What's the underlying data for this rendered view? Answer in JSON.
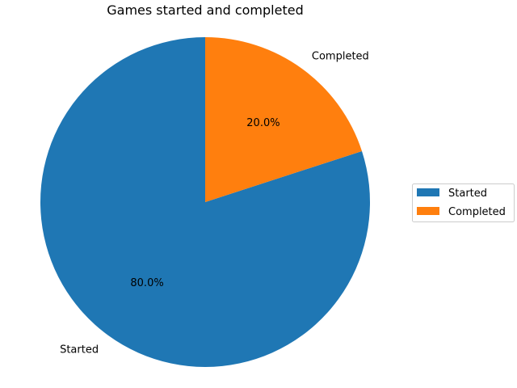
{
  "chart_data": {
    "type": "pie",
    "title": "Games started and completed",
    "slices": [
      {
        "label": "Started",
        "value": 80.0,
        "pct_label": "80.0%",
        "color": "#1f77b4"
      },
      {
        "label": "Completed",
        "value": 20.0,
        "pct_label": "20.0%",
        "color": "#ff7f0e"
      }
    ],
    "start_angle_deg": 90,
    "direction": "counterclockwise",
    "legend": {
      "placement": "center-right",
      "entries": [
        "Started",
        "Completed"
      ]
    }
  }
}
